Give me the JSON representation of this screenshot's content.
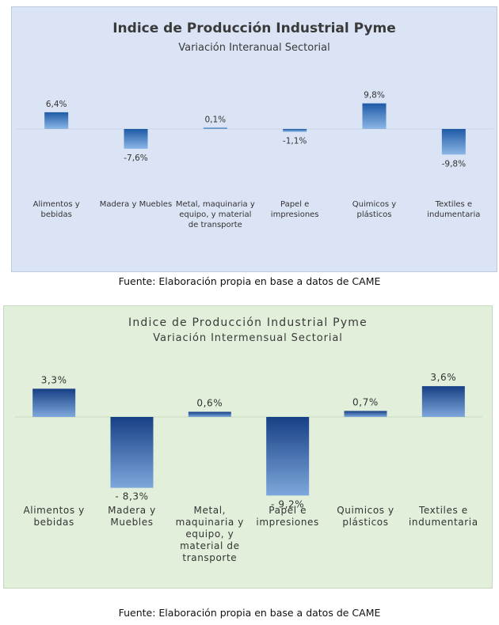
{
  "charts": [
    {
      "title": "Indice de Producción Industrial Pyme",
      "subtitle": "Variación Interanual Sectorial",
      "caption": "Fuente: Elaboración propia en base a datos de CAME"
    },
    {
      "title": "Indice de Producción Industrial Pyme",
      "subtitle": "Variación Intermensual Sectorial",
      "caption": "Fuente: Elaboración propia en base a datos de CAME"
    }
  ],
  "chart_data": [
    {
      "type": "bar",
      "title": "Indice de Producción Industrial Pyme",
      "subtitle": "Variación Interanual Sectorial",
      "categories": [
        "Alimentos y bebidas",
        "Madera y Muebles",
        "Metal, maquinaria y equipo, y material de transporte",
        "Papel e impresiones",
        "Quimicos y plásticos",
        "Textiles e indumentaria"
      ],
      "values": [
        6.4,
        -7.6,
        0.1,
        -1.1,
        9.8,
        -9.8
      ],
      "value_labels": [
        "6,4%",
        "-7,6%",
        "0,1%",
        "-1,1%",
        "9,8%",
        "-9,8%"
      ],
      "unit": "%",
      "background": "#dbe4f4",
      "bar_color": "#2f6db5",
      "grid": false,
      "legend": "none"
    },
    {
      "type": "bar",
      "title": "Indice de Producción Industrial Pyme",
      "subtitle": "Variación Intermensual Sectorial",
      "categories": [
        "Alimentos y bebidas",
        "Madera y Muebles",
        "Metal, maquinaria y equipo, y material de transporte",
        "Papel e impresiones",
        "Quimicos y plásticos",
        "Textiles e indumentaria"
      ],
      "values": [
        3.3,
        -8.3,
        0.6,
        -9.2,
        0.7,
        3.6
      ],
      "value_labels": [
        "3,3%",
        "- 8,3%",
        "0,6%",
        "- 9,2%",
        "0,7%",
        "3,6%"
      ],
      "unit": "%",
      "background": "#e2efda",
      "bar_color": "#1f4f9c",
      "grid": false,
      "legend": "none"
    }
  ]
}
